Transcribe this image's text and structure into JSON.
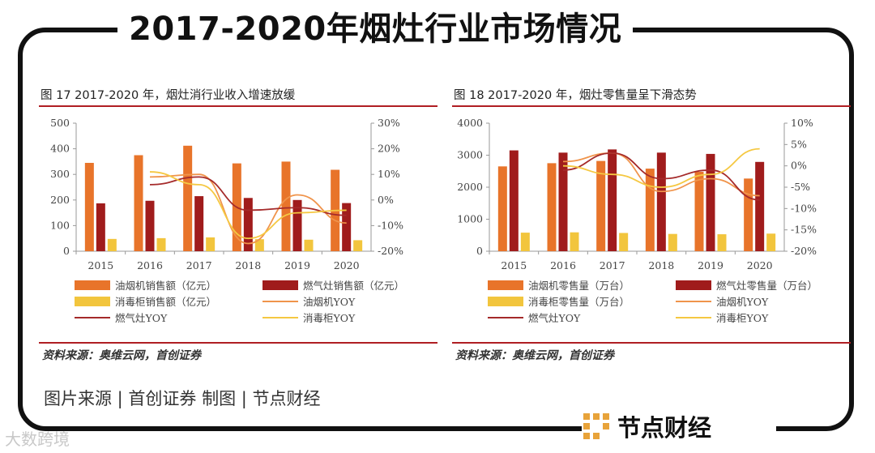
{
  "main_title": "2017-2020年烟灶行业市场情况",
  "footer": {
    "credit": "图片来源 | 首创证券   制图 | 节点财经",
    "brand": "节点财经",
    "watermark": "大数跨境"
  },
  "colors": {
    "accent_red": "#b01e23",
    "orange": "#e8742a",
    "darkred": "#a01c1c",
    "yellow": "#f2c53d",
    "line_orange": "#f0944b",
    "line_darkred": "#a52a2a",
    "line_yellow": "#f5c842"
  },
  "chart_data": [
    {
      "type": "bar",
      "title": "图 17 2017-2020 年，烟灶消行业收入增速放缓",
      "source": "资料来源：奥维云网，首创证券",
      "categories": [
        "2015",
        "2016",
        "2017",
        "2018",
        "2019",
        "2020"
      ],
      "ylim": [
        0,
        500
      ],
      "yticks": [
        "500",
        "400",
        "300",
        "200",
        "100",
        "0"
      ],
      "y2lim": [
        -20,
        30
      ],
      "y2ticks": [
        "30%",
        "20%",
        "10%",
        "0%",
        "-10%",
        "-20%"
      ],
      "series": [
        {
          "name": "油烟机销售额（亿元）",
          "kind": "bar",
          "color": "#e8742a",
          "values": [
            345,
            375,
            412,
            343,
            350,
            318
          ]
        },
        {
          "name": "燃气灶销售额（亿元）",
          "kind": "bar",
          "color": "#a01c1c",
          "values": [
            187,
            197,
            215,
            208,
            200,
            188
          ]
        },
        {
          "name": "消毒柜销售额（亿元）",
          "kind": "bar",
          "color": "#f2c53d",
          "values": [
            48,
            51,
            54,
            47,
            45,
            43
          ]
        },
        {
          "name": "油烟机YOY",
          "kind": "line",
          "color": "#f0944b",
          "values": [
            null,
            9,
            10,
            -17,
            2,
            -9
          ]
        },
        {
          "name": "燃气灶YOY",
          "kind": "line",
          "color": "#a52a2a",
          "values": [
            null,
            6,
            9,
            -4,
            -3,
            -6
          ]
        },
        {
          "name": "消毒柜YOY",
          "kind": "line",
          "color": "#f5c842",
          "values": [
            null,
            11,
            6,
            -15,
            -5,
            -4
          ]
        }
      ]
    },
    {
      "type": "bar",
      "title": "图 18 2017-2020 年，烟灶零售量呈下滑态势",
      "source": "资料来源：奥维云网，首创证券",
      "categories": [
        "2015",
        "2016",
        "2017",
        "2018",
        "2019",
        "2020"
      ],
      "ylim": [
        0,
        4000
      ],
      "yticks": [
        "4000",
        "3000",
        "2000",
        "1000",
        "0"
      ],
      "y2lim": [
        -20,
        10
      ],
      "y2ticks": [
        "10%",
        "5%",
        "0%",
        "-5%",
        "-10%",
        "-15%",
        "-20%"
      ],
      "series": [
        {
          "name": "油烟机零售量（万台）",
          "kind": "bar",
          "color": "#e8742a",
          "values": [
            2650,
            2750,
            2820,
            2580,
            2480,
            2270
          ]
        },
        {
          "name": "燃气灶零售量（万台）",
          "kind": "bar",
          "color": "#a01c1c",
          "values": [
            3150,
            3080,
            3180,
            3080,
            3040,
            2790
          ]
        },
        {
          "name": "消毒柜零售量（万台）",
          "kind": "bar",
          "color": "#f2c53d",
          "values": [
            580,
            590,
            570,
            540,
            530,
            550
          ]
        },
        {
          "name": "油烟机YOY",
          "kind": "line",
          "color": "#f0944b",
          "values": [
            null,
            1,
            3,
            -6,
            -3,
            -7
          ]
        },
        {
          "name": "燃气灶YOY",
          "kind": "line",
          "color": "#a52a2a",
          "values": [
            null,
            -1,
            3,
            -3,
            -1,
            -8
          ]
        },
        {
          "name": "消毒柜YOY",
          "kind": "line",
          "color": "#f5c842",
          "values": [
            null,
            0,
            -2,
            -5,
            -2,
            4
          ]
        }
      ]
    }
  ]
}
